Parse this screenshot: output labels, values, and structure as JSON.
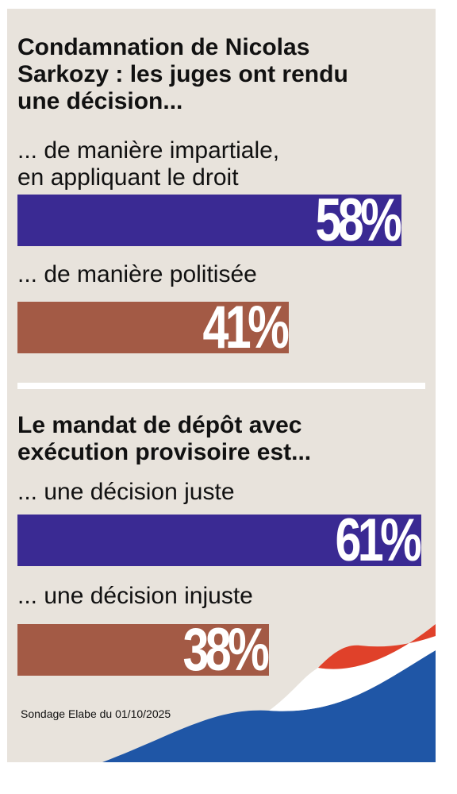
{
  "chart_data": [
    {
      "type": "bar",
      "title": "Condamnation de Nicolas\nSarkozy : les juges ont rendu\nune décision...",
      "categories": [
        "... de manière impartiale,\nen appliquant le droit",
        "... de manière politisée"
      ],
      "values": [
        58,
        41
      ],
      "value_labels": [
        "58%",
        "41%"
      ],
      "colors": [
        "#3a2a93",
        "#a35a45"
      ],
      "ylim": [
        0,
        100
      ]
    },
    {
      "type": "bar",
      "title": "Le mandat de dépôt avec\nexécution provisoire est...",
      "categories": [
        "... une décision juste",
        "... une décision injuste"
      ],
      "values": [
        61,
        38
      ],
      "value_labels": [
        "61%",
        "38%"
      ],
      "colors": [
        "#3a2a93",
        "#a35a45"
      ],
      "ylim": [
        0,
        100
      ]
    }
  ],
  "source": "Sondage Elabe du 01/10/2025",
  "colors": {
    "background": "#e8e3dc",
    "favorable_bar": "#3a2a93",
    "unfavorable_bar": "#a35a45",
    "flag_blue": "#1f56a6",
    "flag_red": "#e0412a"
  }
}
